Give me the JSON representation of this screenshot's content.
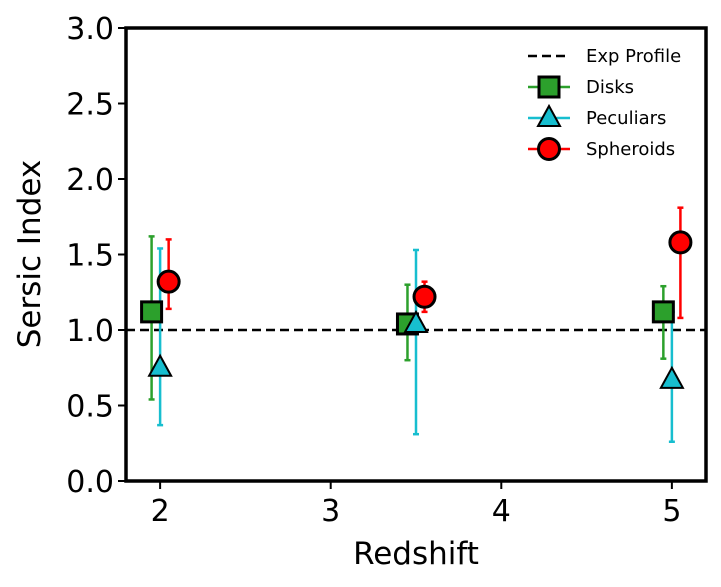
{
  "chart_data": {
    "type": "scatter",
    "title": "",
    "xlabel": "Redshift",
    "ylabel": "Sersic Index",
    "xlim": [
      1.8,
      5.2
    ],
    "ylim": [
      0.0,
      3.0
    ],
    "x_ticks": [
      2,
      3,
      4,
      5
    ],
    "x_tick_labels": [
      "2",
      "3",
      "4",
      "5"
    ],
    "y_ticks": [
      0.0,
      0.5,
      1.0,
      1.5,
      2.0,
      2.5,
      3.0
    ],
    "y_tick_labels": [
      "0.0",
      "0.5",
      "1.0",
      "1.5",
      "2.0",
      "2.5",
      "3.0"
    ],
    "grid": false,
    "legend_position": "top-right",
    "reference_line": {
      "name": "Exp Profile",
      "y": 1.0,
      "style": "dashed",
      "color": "#000000"
    },
    "series": [
      {
        "name": "Disks",
        "marker": "square",
        "color": "#2ca02c",
        "x": [
          1.95,
          3.45,
          4.95
        ],
        "y": [
          1.12,
          1.04,
          1.12
        ],
        "err_low": [
          0.54,
          0.8,
          0.81
        ],
        "err_high": [
          1.62,
          1.3,
          1.29
        ]
      },
      {
        "name": "Peculiars",
        "marker": "triangle",
        "color": "#17becf",
        "x": [
          2.0,
          3.5,
          5.0
        ],
        "y": [
          0.75,
          1.04,
          0.67
        ],
        "err_low": [
          0.37,
          0.31,
          0.26
        ],
        "err_high": [
          1.54,
          1.53,
          1.12
        ]
      },
      {
        "name": "Spheroids",
        "marker": "circle",
        "color": "#ff0000",
        "x": [
          2.05,
          3.55,
          5.05
        ],
        "y": [
          1.32,
          1.22,
          1.58
        ],
        "err_low": [
          1.14,
          1.12,
          1.08
        ],
        "err_high": [
          1.6,
          1.32,
          1.81
        ]
      }
    ]
  }
}
